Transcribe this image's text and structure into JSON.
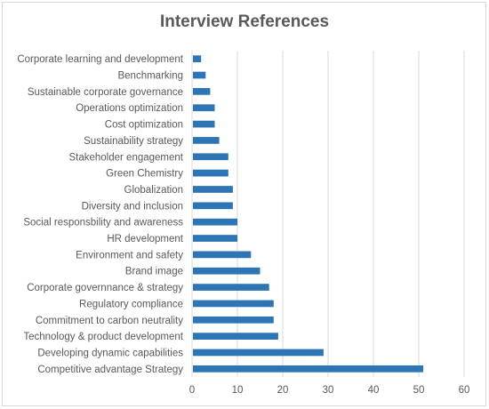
{
  "chart_data": {
    "type": "bar",
    "orientation": "horizontal",
    "title": "Interview References",
    "xlabel": "",
    "ylabel": "",
    "categories": [
      "Corporate learning and development",
      "Benchmarking",
      "Sustainable corporate governance",
      "Operations optimization",
      "Cost optimization",
      "Sustainability strategy",
      "Stakeholder engagement",
      "Green Chemistry",
      "Globalization",
      "Diversity and inclusion",
      "Social responsbility and awareness",
      "HR development",
      "Environment and safety",
      "Brand image",
      "Corporate governnance & strategy",
      "Regulatory compliance",
      "Commitment to carbon neutrality",
      "Technology & product development",
      "Developing dynamic capabilities",
      "Competitive advantage Strategy"
    ],
    "values": [
      2,
      3,
      4,
      5,
      5,
      6,
      8,
      8,
      9,
      9,
      10,
      10,
      13,
      15,
      17,
      18,
      18,
      19,
      29,
      51
    ],
    "xlim": [
      0,
      60
    ],
    "xticks": [
      0,
      10,
      20,
      30,
      40,
      50,
      60
    ],
    "bar_color": "#2e75b6",
    "grid_color": "#d9d9d9",
    "grid": true,
    "legend": false
  }
}
